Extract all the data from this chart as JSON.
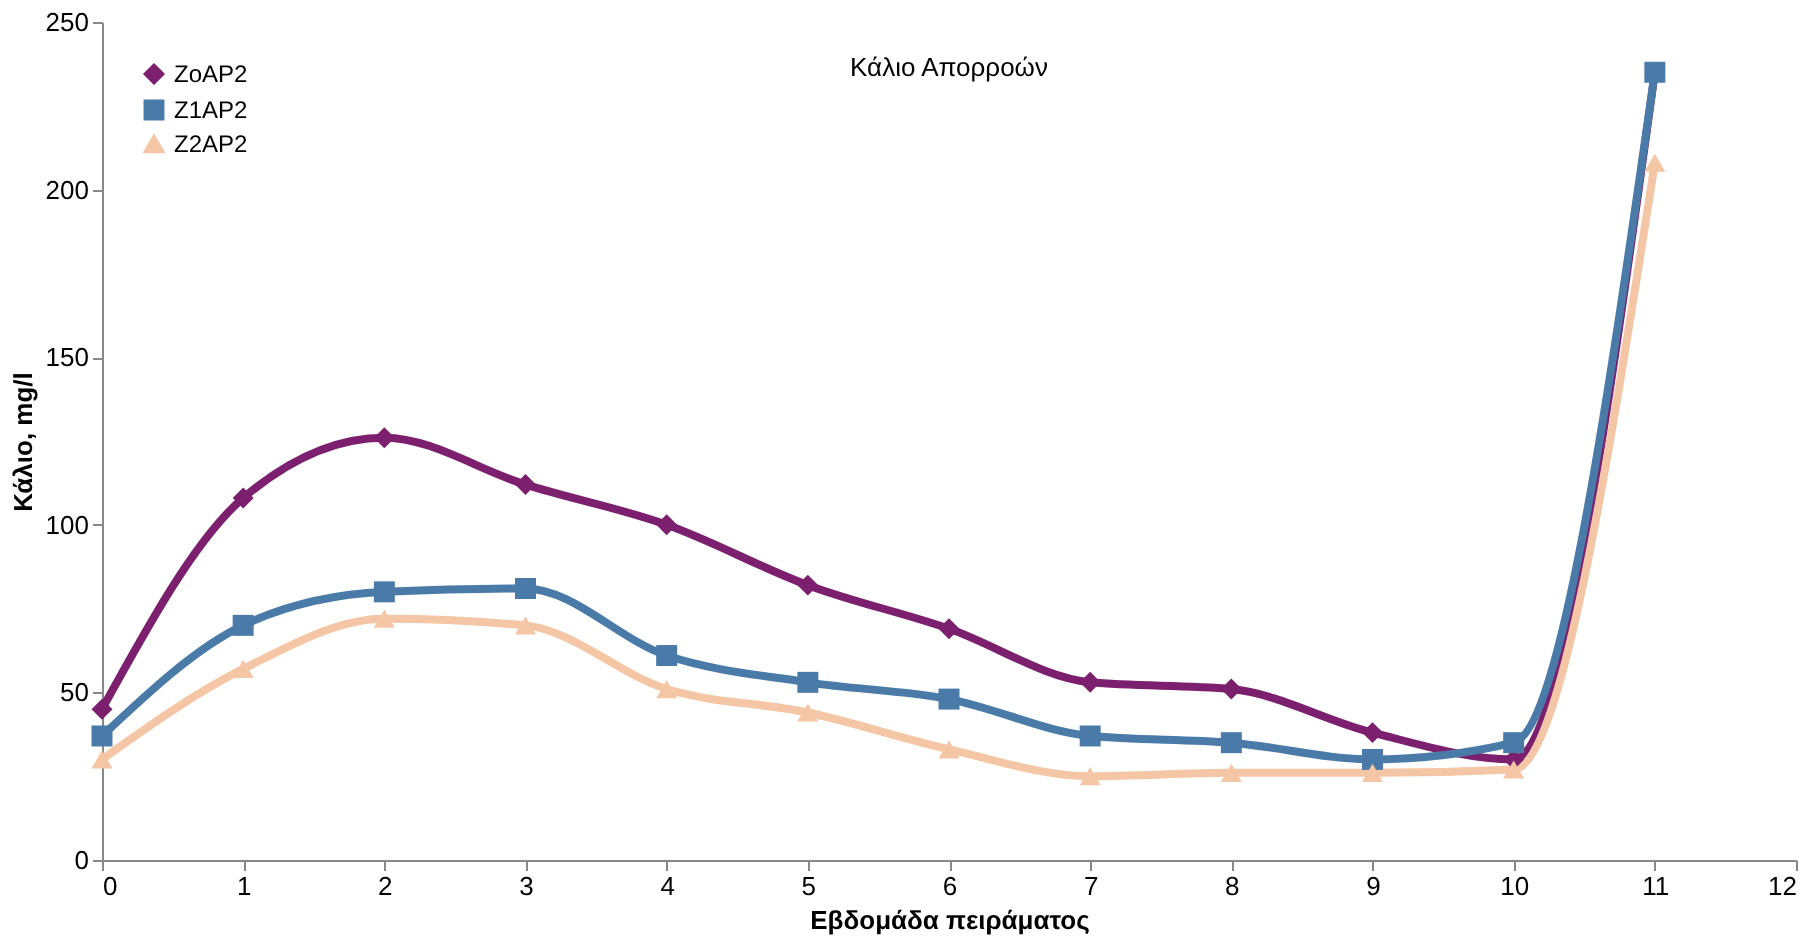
{
  "chart_data": {
    "type": "line",
    "title": "Κάλιο Απορροών",
    "xlabel": "Εβδομάδα πειράματος",
    "ylabel": "Κάλιο, mg/l",
    "x": [
      0,
      1,
      2,
      3,
      4,
      5,
      6,
      7,
      8,
      9,
      10,
      11
    ],
    "series": [
      {
        "name": "ZoAP2",
        "color": "#7b1f6e",
        "marker": "diamond",
        "values": [
          45,
          108,
          126,
          112,
          100,
          82,
          69,
          53,
          51,
          38,
          30,
          235
        ]
      },
      {
        "name": "Z1AP2",
        "color": "#4a7aa8",
        "marker": "square",
        "values": [
          37,
          70,
          80,
          81,
          61,
          53,
          48,
          37,
          35,
          30,
          35,
          235
        ]
      },
      {
        "name": "Z2AP2",
        "color": "#f5c6a5",
        "marker": "triangle",
        "values": [
          30,
          57,
          72,
          70,
          51,
          44,
          33,
          25,
          26,
          26,
          27,
          208
        ]
      }
    ],
    "xlim": [
      0,
      12
    ],
    "xticks": [
      0,
      1,
      2,
      3,
      4,
      5,
      6,
      7,
      8,
      9,
      10,
      11,
      12
    ],
    "ylim": [
      0,
      250
    ],
    "yticks": [
      0,
      50,
      100,
      150,
      200,
      250
    ],
    "grid": false,
    "legend": "top left",
    "line_style": "solid"
  }
}
